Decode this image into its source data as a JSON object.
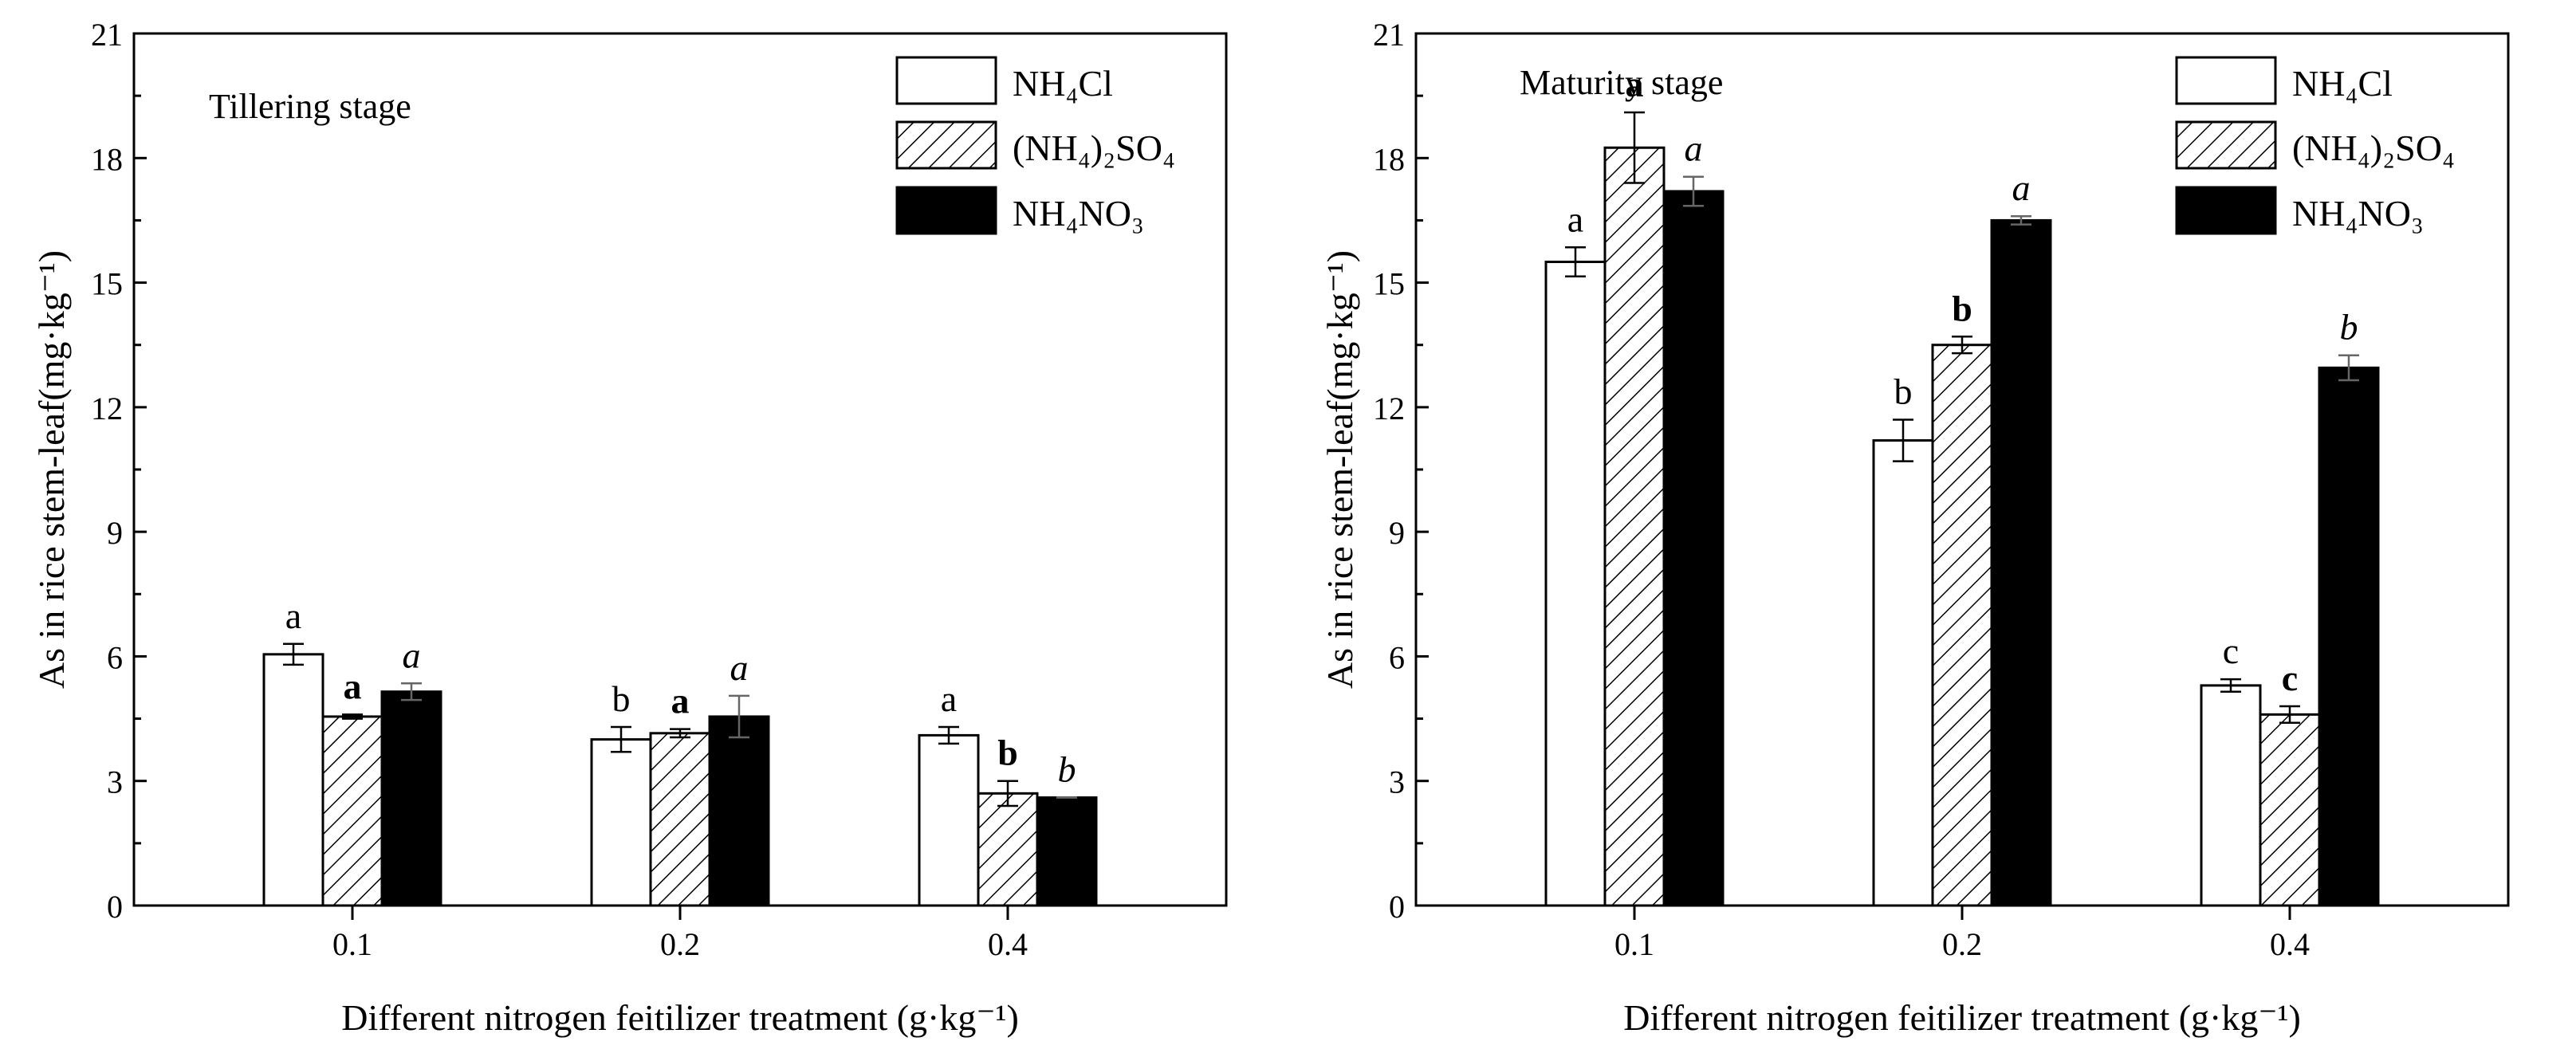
{
  "chart_data": [
    {
      "type": "bar",
      "title": "Tillering stage",
      "xlabel": "Different nitrogen feitilizer treatment (g·kg⁻¹)",
      "ylabel": "As in rice stem-leaf(mg·kg⁻¹)",
      "ylim": [
        0,
        21
      ],
      "yticks": [
        "0",
        "3",
        "6",
        "9",
        "12",
        "15",
        "18",
        "21"
      ],
      "categories": [
        "0.1",
        "0.2",
        "0.4"
      ],
      "legend_position": "top-right",
      "series": [
        {
          "name": "NH₄Cl",
          "style": "open",
          "values": [
            6.05,
            4.0,
            4.1
          ],
          "errors": [
            0.25,
            0.3,
            0.2
          ],
          "labels": [
            "a",
            "b",
            "a"
          ]
        },
        {
          "name": "(NH₄)₂SO₄",
          "style": "hatched",
          "values": [
            4.55,
            4.15,
            2.7
          ],
          "errors": [
            0.05,
            0.1,
            0.3
          ],
          "labels": [
            "a",
            "a",
            "b"
          ]
        },
        {
          "name": "NH₄NO₃",
          "style": "solid",
          "values": [
            5.15,
            4.55,
            2.6
          ],
          "errors": [
            0.2,
            0.5,
            0.0
          ],
          "labels": [
            "a",
            "a",
            "b"
          ]
        }
      ]
    },
    {
      "type": "bar",
      "title": "Maturity stage",
      "xlabel": "Different nitrogen feitilizer treatment (g·kg⁻¹)",
      "ylabel": "As in rice stem-leaf(mg·kg⁻¹)",
      "ylim": [
        0,
        21
      ],
      "yticks": [
        "0",
        "3",
        "6",
        "9",
        "12",
        "15",
        "18",
        "21"
      ],
      "categories": [
        "0.1",
        "0.2",
        "0.4"
      ],
      "legend_position": "top-right",
      "series": [
        {
          "name": "NH₄Cl",
          "style": "open",
          "values": [
            15.5,
            11.2,
            5.3
          ],
          "errors": [
            0.35,
            0.5,
            0.15
          ],
          "labels": [
            "a",
            "b",
            "c"
          ]
        },
        {
          "name": "(NH₄)₂SO₄",
          "style": "hatched",
          "values": [
            18.25,
            13.5,
            4.6
          ],
          "errors": [
            0.85,
            0.2,
            0.2
          ],
          "labels": [
            "a",
            "b",
            "c"
          ]
        },
        {
          "name": "NH₄NO₃",
          "style": "solid",
          "values": [
            17.2,
            16.5,
            12.95
          ],
          "errors": [
            0.35,
            0.1,
            0.3
          ],
          "labels": [
            "a",
            "a",
            "b"
          ]
        }
      ]
    }
  ]
}
